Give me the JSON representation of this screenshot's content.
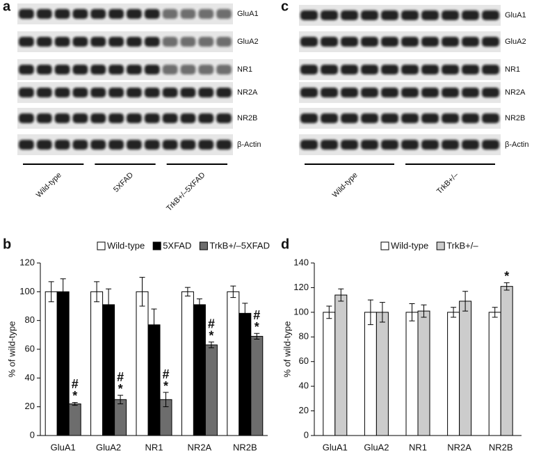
{
  "blots": [
    {
      "panel": "a",
      "rows": [
        "GluA1",
        "GluA2",
        "NR1",
        "NR2A",
        "NR2B",
        "β-Actin"
      ],
      "groups": [
        "Wild-type",
        "5XFAD",
        "TrkB+/–5XFAD"
      ]
    },
    {
      "panel": "c",
      "rows": [
        "GluA1",
        "GluA2",
        "NR1",
        "NR2A",
        "NR2B",
        "β-Actin"
      ],
      "groups": [
        "Wild-type",
        "TrkB+/–"
      ]
    }
  ],
  "chart_data": [
    {
      "type": "bar",
      "panel": "b",
      "y_label": "% of wild-type",
      "categories": [
        "GluA1",
        "GluA2",
        "NR1",
        "NR2A",
        "NR2B"
      ],
      "series": [
        {
          "name": "Wild-type",
          "color": "#ffffff",
          "values": [
            100,
            100,
            100,
            100,
            100
          ],
          "errors": [
            7,
            7,
            10,
            3,
            4
          ]
        },
        {
          "name": "5XFAD",
          "color": "#000000",
          "values": [
            100,
            91,
            77,
            91,
            85
          ],
          "errors": [
            9,
            11,
            11,
            4,
            7
          ]
        },
        {
          "name": "TrkB+/–5XFAD",
          "color": "#6d6d6d",
          "values": [
            22,
            25,
            25,
            63,
            69
          ],
          "errors": [
            1,
            3,
            5,
            2,
            2
          ],
          "annotations": [
            [
              "#",
              "*"
            ],
            [
              "#",
              "*"
            ],
            [
              "#",
              "*"
            ],
            [
              "#",
              "*"
            ],
            [
              "#",
              "*"
            ]
          ]
        }
      ],
      "ylim": [
        0,
        120
      ],
      "yticks": [
        0,
        20,
        40,
        60,
        80,
        100,
        120
      ]
    },
    {
      "type": "bar",
      "panel": "d",
      "y_label": "% of wild-type",
      "categories": [
        "GluA1",
        "GluA2",
        "NR1",
        "NR2A",
        "NR2B"
      ],
      "series": [
        {
          "name": "Wild-type",
          "color": "#ffffff",
          "values": [
            100,
            100,
            100,
            100,
            100
          ],
          "errors": [
            5,
            10,
            7,
            4,
            4
          ]
        },
        {
          "name": "TrkB+/–",
          "color": "#cccccc",
          "values": [
            114,
            100,
            101,
            109,
            121
          ],
          "errors": [
            5,
            8,
            5,
            8,
            3
          ],
          "annotations": [
            null,
            null,
            null,
            null,
            [
              "*"
            ]
          ]
        }
      ],
      "ylim": [
        0,
        140
      ],
      "yticks": [
        0,
        20,
        40,
        60,
        80,
        100,
        120,
        140
      ]
    }
  ]
}
